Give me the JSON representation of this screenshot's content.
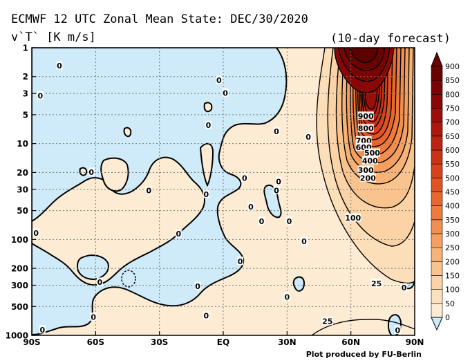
{
  "title": "ECMWF 12 UTC Zonal Mean State: DEC/30/2020",
  "subtitle": "v`T` [K m/s]",
  "forecast_note": "(10-day forecast)",
  "credit": "Plot produced by FU-Berlin",
  "chart_data": {
    "type": "heatmap",
    "title": "ECMWF 12 UTC Zonal Mean State: DEC/30/2020",
    "subtitle": "v`T` [K m/s]",
    "annotation": "(10-day forecast)",
    "xlabel": "",
    "ylabel": "",
    "x_ticks": [
      "90S",
      "60S",
      "30S",
      "EQ",
      "30N",
      "60N",
      "90N"
    ],
    "x_tick_values": [
      -90,
      -60,
      -30,
      0,
      30,
      60,
      90
    ],
    "y_ticks": [
      1,
      2,
      3,
      5,
      10,
      20,
      30,
      50,
      100,
      200,
      300,
      500,
      1000
    ],
    "y_scale": "log",
    "y_inverted": true,
    "ylim": [
      1000,
      1
    ],
    "xlim": [
      -90,
      90
    ],
    "grid": true,
    "colorbar_levels": [
      0,
      50,
      100,
      150,
      200,
      250,
      300,
      350,
      400,
      450,
      500,
      550,
      600,
      650,
      700,
      750,
      800,
      850,
      900
    ],
    "colorbar_colors": [
      "#fdecd3",
      "#fce1bf",
      "#fbd3a6",
      "#f9c38d",
      "#f7b276",
      "#f5a061",
      "#f28e4e",
      "#ee7b3d",
      "#e8672f",
      "#e05424",
      "#d5421b",
      "#c93214",
      "#bb2410",
      "#ac180c",
      "#9b0e0a",
      "#8a0707",
      "#7a0404",
      "#6a0202"
    ],
    "negative_color": "#cfeaf8",
    "contour_labels": [
      {
        "text": "900",
        "lat": 67,
        "p": 5.2
      },
      {
        "text": "800",
        "lat": 67,
        "p": 7
      },
      {
        "text": "700",
        "lat": 66,
        "p": 9.4
      },
      {
        "text": "600",
        "lat": 66,
        "p": 11
      },
      {
        "text": "500",
        "lat": 70,
        "p": 12.6
      },
      {
        "text": "400",
        "lat": 69,
        "p": 15.2
      },
      {
        "text": "300",
        "lat": 67,
        "p": 19
      },
      {
        "text": "200",
        "lat": 68,
        "p": 23
      },
      {
        "text": "100",
        "lat": 61,
        "p": 60
      },
      {
        "text": "25",
        "lat": 72,
        "p": 290
      },
      {
        "text": "25",
        "lat": 49,
        "p": 720
      },
      {
        "text": "0",
        "lat": -77,
        "p": 1.55
      },
      {
        "text": "0",
        "lat": -86,
        "p": 3.2
      },
      {
        "text": "0",
        "lat": -2,
        "p": 2.2
      },
      {
        "text": "0",
        "lat": 1,
        "p": 3.0
      },
      {
        "text": "0",
        "lat": -7,
        "p": 6.5
      },
      {
        "text": "0",
        "lat": -62,
        "p": 20
      },
      {
        "text": "0",
        "lat": -35,
        "p": 31
      },
      {
        "text": "0",
        "lat": -8,
        "p": 34
      },
      {
        "text": "0",
        "lat": 10,
        "p": 23
      },
      {
        "text": "0",
        "lat": 26,
        "p": 25
      },
      {
        "text": "0",
        "lat": 25,
        "p": 31
      },
      {
        "text": "0",
        "lat": 40,
        "p": 8.6
      },
      {
        "text": "0",
        "lat": 25,
        "p": 7.5
      },
      {
        "text": "0",
        "lat": 13,
        "p": 46
      },
      {
        "text": "0",
        "lat": 18,
        "p": 65
      },
      {
        "text": "0",
        "lat": 31,
        "p": 65
      },
      {
        "text": "0",
        "lat": 38,
        "p": 105
      },
      {
        "text": "0",
        "lat": -21,
        "p": 88
      },
      {
        "text": "0",
        "lat": -88,
        "p": 86
      },
      {
        "text": "0",
        "lat": 8,
        "p": 170
      },
      {
        "text": "0",
        "lat": -12,
        "p": 310
      },
      {
        "text": "0",
        "lat": -8,
        "p": 630
      },
      {
        "text": "0",
        "lat": 30,
        "p": 400
      },
      {
        "text": "0",
        "lat": -61,
        "p": 650
      },
      {
        "text": "0",
        "lat": -85,
        "p": 880
      },
      {
        "text": "0",
        "lat": -58,
        "p": 280
      },
      {
        "text": "0",
        "lat": 85,
        "p": 320
      },
      {
        "text": "0",
        "lat": 82,
        "p": 890
      }
    ]
  }
}
